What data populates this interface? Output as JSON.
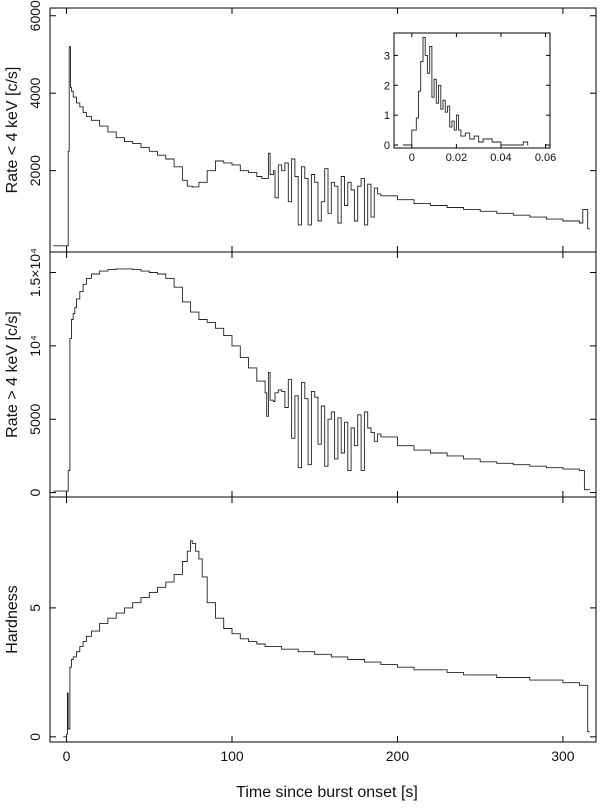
{
  "figure": {
    "xlabel": "Time since burst onset [s]"
  },
  "chart_data": [
    {
      "id": "top",
      "type": "line",
      "step": true,
      "ylabel": "Rate < 4 keV [c/s]",
      "xlim": [
        -10,
        320
      ],
      "ylim": [
        -100,
        6200
      ],
      "xticks": [
        0,
        100,
        200,
        300
      ],
      "yticks": [
        2000,
        4000,
        6000
      ],
      "yticklabels": [
        "2000",
        "4000",
        "6000"
      ],
      "x": [
        -8,
        -2,
        0,
        1,
        1.6,
        2.4,
        3,
        4,
        6,
        8,
        10,
        12,
        15,
        20,
        25,
        30,
        35,
        40,
        45,
        50,
        55,
        60,
        65,
        70,
        73,
        76,
        80,
        85,
        90,
        95,
        100,
        105,
        110,
        115,
        118,
        122,
        123,
        125,
        126,
        128,
        130,
        132,
        134,
        136,
        138,
        140,
        142,
        144,
        146,
        148,
        150,
        152,
        154,
        156,
        158,
        160,
        162,
        164,
        166,
        168,
        170,
        172,
        174,
        176,
        178,
        180,
        182,
        184,
        186,
        188,
        190,
        200,
        210,
        220,
        230,
        240,
        250,
        260,
        270,
        280,
        290,
        300,
        310,
        312,
        315
      ],
      "y": [
        60,
        60,
        60,
        2500,
        5200,
        4150,
        4050,
        3900,
        3750,
        3650,
        3500,
        3400,
        3300,
        3150,
        3000,
        2850,
        2750,
        2700,
        2600,
        2500,
        2400,
        2300,
        2100,
        1750,
        1600,
        1580,
        1700,
        2000,
        2250,
        2200,
        2150,
        2000,
        1950,
        1850,
        1800,
        2450,
        1900,
        2000,
        1300,
        2150,
        2000,
        2200,
        1200,
        2300,
        1850,
        600,
        2100,
        1800,
        600,
        1900,
        1700,
        700,
        1200,
        2050,
        900,
        1700,
        1600,
        650,
        1850,
        1100,
        1700,
        1500,
        700,
        1600,
        1800,
        600,
        1650,
        800,
        1550,
        1400,
        1350,
        1250,
        1150,
        1100,
        1050,
        1000,
        950,
        900,
        850,
        800,
        750,
        700,
        650,
        1000,
        500
      ]
    },
    {
      "id": "inset",
      "type": "line",
      "step": true,
      "xlim": [
        -0.008,
        0.062
      ],
      "ylim": [
        -0.1,
        3.75
      ],
      "xticks": [
        0,
        0.02,
        0.04,
        0.06
      ],
      "xticklabels": [
        "0",
        "0.02",
        "0.04",
        "0.06"
      ],
      "yticks": [
        0,
        1,
        2,
        3
      ],
      "yticklabels": [
        "0",
        "1",
        "2",
        "3"
      ],
      "x": [
        -0.004,
        -0.001,
        0,
        0.002,
        0.003,
        0.004,
        0.005,
        0.006,
        0.007,
        0.008,
        0.009,
        0.01,
        0.011,
        0.012,
        0.013,
        0.014,
        0.015,
        0.016,
        0.017,
        0.018,
        0.019,
        0.02,
        0.021,
        0.022,
        0.024,
        0.026,
        0.028,
        0.03,
        0.032,
        0.036,
        0.04,
        0.05,
        0.052
      ],
      "y": [
        0,
        0,
        0.5,
        0.9,
        1.8,
        2.8,
        3.6,
        3.0,
        2.4,
        3.3,
        1.6,
        2.2,
        1.4,
        2.0,
        1.2,
        1.5,
        1.1,
        1.3,
        0.6,
        0.8,
        0.5,
        1.0,
        0.5,
        0.3,
        0.4,
        0.2,
        0.3,
        0.1,
        0.2,
        0.1,
        0,
        0.1,
        0
      ]
    },
    {
      "id": "middle",
      "type": "line",
      "step": true,
      "ylabel": "Rate > 4 keV [c/s]",
      "xlim": [
        -10,
        320
      ],
      "ylim": [
        -300,
        16400
      ],
      "xticks": [
        0,
        100,
        200,
        300
      ],
      "yticks": [
        0,
        5000,
        10000,
        15000
      ],
      "yticklabels": [
        "0",
        "5000",
        "10⁴",
        "1.5×10⁴"
      ],
      "x": [
        -8,
        -2,
        0,
        1,
        2,
        3,
        4,
        5,
        6,
        8,
        10,
        12,
        15,
        20,
        25,
        30,
        35,
        40,
        45,
        50,
        55,
        60,
        65,
        70,
        75,
        80,
        85,
        90,
        95,
        100,
        105,
        110,
        115,
        120,
        121,
        122,
        123,
        125,
        126,
        128,
        130,
        132,
        134,
        136,
        138,
        140,
        142,
        144,
        146,
        148,
        150,
        152,
        154,
        156,
        158,
        160,
        162,
        164,
        166,
        168,
        170,
        172,
        174,
        176,
        178,
        180,
        182,
        184,
        186,
        188,
        190,
        200,
        210,
        220,
        230,
        240,
        250,
        260,
        270,
        280,
        290,
        300,
        310,
        313,
        315
      ],
      "y": [
        100,
        100,
        100,
        1500,
        10500,
        11800,
        12200,
        12600,
        13200,
        13700,
        14200,
        14600,
        14900,
        15100,
        15200,
        15250,
        15250,
        15200,
        15100,
        15000,
        14900,
        14600,
        14000,
        13000,
        12300,
        11800,
        11600,
        11200,
        10700,
        10000,
        9200,
        8500,
        7600,
        6800,
        5200,
        8200,
        6300,
        6200,
        6800,
        7000,
        6900,
        5800,
        7700,
        3700,
        6600,
        1700,
        7500,
        6400,
        1900,
        6900,
        6500,
        3300,
        5900,
        1800,
        5000,
        5500,
        2300,
        5100,
        2700,
        4800,
        1500,
        4400,
        3200,
        5300,
        1500,
        5500,
        4400,
        4100,
        3500,
        4000,
        3800,
        3200,
        2900,
        2700,
        2500,
        2300,
        2100,
        2000,
        1900,
        1800,
        1700,
        1600,
        1500,
        200,
        200
      ]
    },
    {
      "id": "bottom",
      "type": "line",
      "step": true,
      "ylabel": "Hardness",
      "xlim": [
        -10,
        320
      ],
      "ylim": [
        -0.2,
        9.3
      ],
      "xticks": [
        0,
        100,
        200,
        300
      ],
      "xticklabels": [
        "0",
        "100",
        "200",
        "300"
      ],
      "yticks": [
        0,
        5
      ],
      "yticklabels": [
        "0",
        "5"
      ],
      "x": [
        -2,
        0,
        0.5,
        1,
        2,
        3,
        4,
        6,
        8,
        10,
        12,
        15,
        20,
        25,
        30,
        35,
        40,
        45,
        50,
        55,
        60,
        65,
        70,
        73,
        75,
        76,
        78,
        80,
        82,
        85,
        90,
        95,
        100,
        105,
        110,
        115,
        120,
        130,
        140,
        150,
        160,
        170,
        180,
        190,
        200,
        210,
        220,
        230,
        240,
        250,
        260,
        270,
        280,
        290,
        300,
        310,
        313,
        315
      ],
      "y": [
        0,
        0.1,
        1.7,
        0.3,
        2.7,
        3.0,
        3.1,
        3.3,
        3.5,
        3.7,
        3.9,
        4.1,
        4.4,
        4.6,
        4.8,
        5.0,
        5.2,
        5.4,
        5.6,
        5.8,
        6.0,
        6.3,
        6.8,
        7.2,
        7.6,
        7.5,
        7.2,
        6.9,
        6.2,
        5.2,
        4.6,
        4.2,
        4.0,
        3.8,
        3.7,
        3.6,
        3.5,
        3.4,
        3.3,
        3.2,
        3.1,
        3.0,
        2.9,
        2.8,
        2.7,
        2.6,
        2.6,
        2.5,
        2.4,
        2.4,
        2.3,
        2.3,
        2.2,
        2.2,
        2.1,
        2.0,
        2.0,
        0.2
      ]
    }
  ]
}
